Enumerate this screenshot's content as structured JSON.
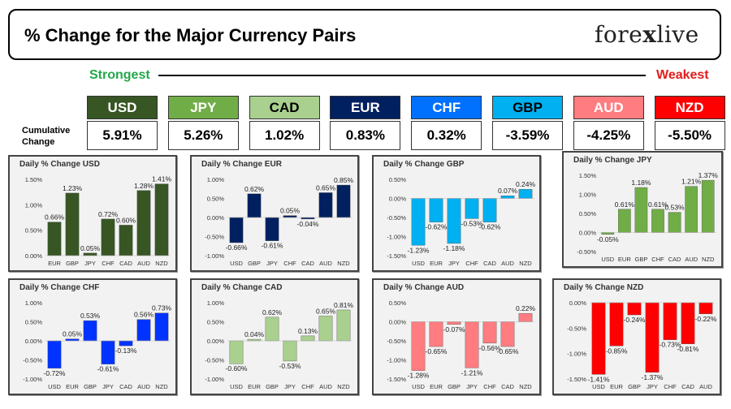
{
  "header": {
    "title": "% Change for the Major Currency Pairs",
    "logo_left": "fore",
    "logo_x": "x",
    "logo_right": "live"
  },
  "scale": {
    "strongest": "Strongest",
    "weakest": "Weakest"
  },
  "cumulative_label": "Cumulative Change",
  "currencies": [
    {
      "code": "USD",
      "value": "5.91%",
      "color": "#375623",
      "text_color": "#ffffff"
    },
    {
      "code": "JPY",
      "value": "5.26%",
      "color": "#70ad47",
      "text_color": "#ffffff"
    },
    {
      "code": "CAD",
      "value": "1.02%",
      "color": "#a9d08e",
      "text_color": "#000000"
    },
    {
      "code": "EUR",
      "value": "0.83%",
      "color": "#002060",
      "text_color": "#ffffff"
    },
    {
      "code": "CHF",
      "value": "0.32%",
      "color": "#0070ff",
      "text_color": "#ffffff"
    },
    {
      "code": "GBP",
      "value": "-3.59%",
      "color": "#00b0f0",
      "text_color": "#000000"
    },
    {
      "code": "AUD",
      "value": "-4.25%",
      "color": "#ff7c80",
      "text_color": "#ffffff"
    },
    {
      "code": "NZD",
      "value": "-5.50%",
      "color": "#ff0000",
      "text_color": "#ffffff"
    }
  ],
  "chart_data": [
    {
      "type": "bar",
      "title": "Daily % Change USD",
      "color": "#375623",
      "categories": [
        "EUR",
        "GBP",
        "JPY",
        "CHF",
        "CAD",
        "AUD",
        "NZD"
      ],
      "values": [
        0.66,
        1.23,
        0.05,
        0.72,
        0.6,
        1.28,
        1.41
      ],
      "ylim": [
        0,
        1.5
      ],
      "yticks": [
        0,
        0.5,
        1.0,
        1.5
      ],
      "ytick_labels": [
        "0.00%",
        "0.50%",
        "1.00%",
        "1.50%"
      ],
      "data_labels": [
        "0.66%",
        "1.23%",
        "0.05%",
        "0.72%",
        "0.60%",
        "1.28%",
        "1.41%"
      ]
    },
    {
      "type": "bar",
      "title": "Daily % Change EUR",
      "color": "#002060",
      "categories": [
        "USD",
        "GBP",
        "JPY",
        "CHF",
        "CAD",
        "AUD",
        "NZD"
      ],
      "values": [
        -0.66,
        0.62,
        -0.61,
        0.05,
        -0.04,
        0.65,
        0.85
      ],
      "ylim": [
        -1.0,
        1.0
      ],
      "yticks": [
        -1.0,
        -0.5,
        0,
        0.5,
        1.0
      ],
      "ytick_labels": [
        "-1.00%",
        "-0.50%",
        "0.00%",
        "0.50%",
        "1.00%"
      ],
      "data_labels": [
        "-0.66%",
        "0.62%",
        "-0.61%",
        "0.05%",
        "-0.04%",
        "0.65%",
        "0.85%"
      ]
    },
    {
      "type": "bar",
      "title": "Daily % Change GBP",
      "color": "#00b0f0",
      "categories": [
        "USD",
        "EUR",
        "JPY",
        "CHF",
        "CAD",
        "AUD",
        "NZD"
      ],
      "values": [
        -1.23,
        -0.62,
        -1.18,
        -0.53,
        -0.62,
        0.07,
        0.24
      ],
      "ylim": [
        -1.5,
        0.5
      ],
      "yticks": [
        -1.5,
        -1.0,
        -0.5,
        0,
        0.5
      ],
      "ytick_labels": [
        "-1.50%",
        "-1.00%",
        "-0.50%",
        "0.00%",
        "0.50%"
      ],
      "data_labels": [
        "-1.23%",
        "-0.62%",
        "-1.18%",
        "-0.53%",
        "-0.62%",
        "0.07%",
        "0.24%"
      ]
    },
    {
      "type": "bar",
      "title": "Daily % Change JPY",
      "color": "#70ad47",
      "categories": [
        "USD",
        "EUR",
        "GBP",
        "CHF",
        "CAD",
        "AUD",
        "NZD"
      ],
      "values": [
        -0.05,
        0.61,
        1.18,
        0.61,
        0.53,
        1.21,
        1.37
      ],
      "ylim": [
        -0.5,
        1.5
      ],
      "yticks": [
        -0.5,
        0,
        0.5,
        1.0,
        1.5
      ],
      "ytick_labels": [
        "-0.50%",
        "0.00%",
        "0.50%",
        "1.00%",
        "1.50%"
      ],
      "data_labels": [
        "-0.05%",
        "0.61%",
        "1.18%",
        "0.61%",
        "0.53%",
        "1.21%",
        "1.37%"
      ]
    },
    {
      "type": "bar",
      "title": "Daily % Change CHF",
      "color": "#0033ff",
      "categories": [
        "USD",
        "EUR",
        "GBP",
        "JPY",
        "CAD",
        "AUD",
        "NZD"
      ],
      "values": [
        -0.72,
        0.05,
        0.53,
        -0.61,
        -0.13,
        0.56,
        0.73
      ],
      "ylim": [
        -1.0,
        1.0
      ],
      "yticks": [
        -1.0,
        -0.5,
        0,
        0.5,
        1.0
      ],
      "ytick_labels": [
        "-1.00%",
        "-0.50%",
        "0.00%",
        "0.50%",
        "1.00%"
      ],
      "data_labels": [
        "-0.72%",
        "0.05%",
        "0.53%",
        "-0.61%",
        "-0.13%",
        "0.56%",
        "0.73%"
      ]
    },
    {
      "type": "bar",
      "title": "Daily % Change CAD",
      "color": "#a9d08e",
      "categories": [
        "USD",
        "EUR",
        "GBP",
        "JPY",
        "CHF",
        "AUD",
        "NZD"
      ],
      "values": [
        -0.6,
        0.04,
        0.62,
        -0.53,
        0.13,
        0.65,
        0.81
      ],
      "ylim": [
        -1.0,
        1.0
      ],
      "yticks": [
        -1.0,
        -0.5,
        0,
        0.5,
        1.0
      ],
      "ytick_labels": [
        "-1.00%",
        "-0.50%",
        "0.00%",
        "0.50%",
        "1.00%"
      ],
      "data_labels": [
        "-0.60%",
        "0.04%",
        "0.62%",
        "-0.53%",
        "0.13%",
        "0.65%",
        "0.81%"
      ]
    },
    {
      "type": "bar",
      "title": "Daily % Change AUD",
      "color": "#ff7c80",
      "categories": [
        "USD",
        "EUR",
        "GBP",
        "JPY",
        "CHF",
        "CAD",
        "NZD"
      ],
      "values": [
        -1.28,
        -0.65,
        -0.07,
        -1.21,
        -0.56,
        -0.65,
        0.22
      ],
      "ylim": [
        -1.5,
        0.5
      ],
      "yticks": [
        -1.5,
        -1.0,
        -0.5,
        0,
        0.5
      ],
      "ytick_labels": [
        "-1.50%",
        "-1.00%",
        "-0.50%",
        "0.00%",
        "0.50%"
      ],
      "data_labels": [
        "-1.28%",
        "-0.65%",
        "-0.07%",
        "-1.21%",
        "-0.56%",
        "-0.65%",
        "0.22%"
      ]
    },
    {
      "type": "bar",
      "title": "Daily % Change NZD",
      "color": "#ff0000",
      "categories": [
        "USD",
        "EUR",
        "GBP",
        "JPY",
        "CHF",
        "CAD",
        "AUD"
      ],
      "values": [
        -1.41,
        -0.85,
        -0.24,
        -1.37,
        -0.73,
        -0.81,
        -0.22
      ],
      "ylim": [
        -1.5,
        0
      ],
      "yticks": [
        -1.5,
        -1.0,
        -0.5,
        0
      ],
      "ytick_labels": [
        "-1.50%",
        "-1.00%",
        "-0.50%",
        "0.00%"
      ],
      "data_labels": [
        "-1.41%",
        "-0.85%",
        "-0.24%",
        "-1.37%",
        "-0.73%",
        "-0.81%",
        "-0.22%"
      ]
    }
  ]
}
